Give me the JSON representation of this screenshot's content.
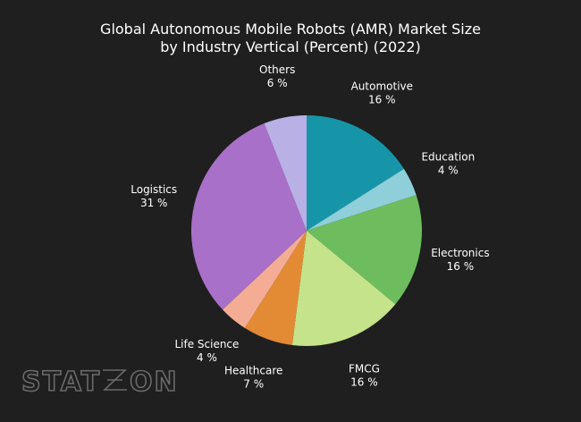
{
  "title": {
    "line1": "Global Autonomous Mobile Robots (AMR) Market Size",
    "line2": "by Industry Vertical (Percent) (2022)"
  },
  "watermark": {
    "left": "STAT",
    "right": "ON"
  },
  "colors": {
    "background": "#1f1f1f",
    "text": "#ffffff"
  },
  "chart_data": {
    "type": "pie",
    "title": "Global Autonomous Mobile Robots (AMR) Market Size by Industry Vertical (Percent) (2022)",
    "unit": "%",
    "slices": [
      {
        "label": "Automotive",
        "value": 16,
        "display": "16 %",
        "color": "#1795a8"
      },
      {
        "label": "Education",
        "value": 4,
        "display": "4 %",
        "color": "#8ecfd9"
      },
      {
        "label": "Electronics",
        "value": 16,
        "display": "16 %",
        "color": "#6dbd5e"
      },
      {
        "label": "FMCG",
        "value": 16,
        "display": "16 %",
        "color": "#c4e38a"
      },
      {
        "label": "Healthcare",
        "value": 7,
        "display": "7 %",
        "color": "#e38a35"
      },
      {
        "label": "Life Science",
        "value": 4,
        "display": "4 %",
        "color": "#f4ad94"
      },
      {
        "label": "Logistics",
        "value": 31,
        "display": "31 %",
        "color": "#a870c8"
      },
      {
        "label": "Others",
        "value": 6,
        "display": "6 %",
        "color": "#b9b0e6"
      }
    ]
  }
}
